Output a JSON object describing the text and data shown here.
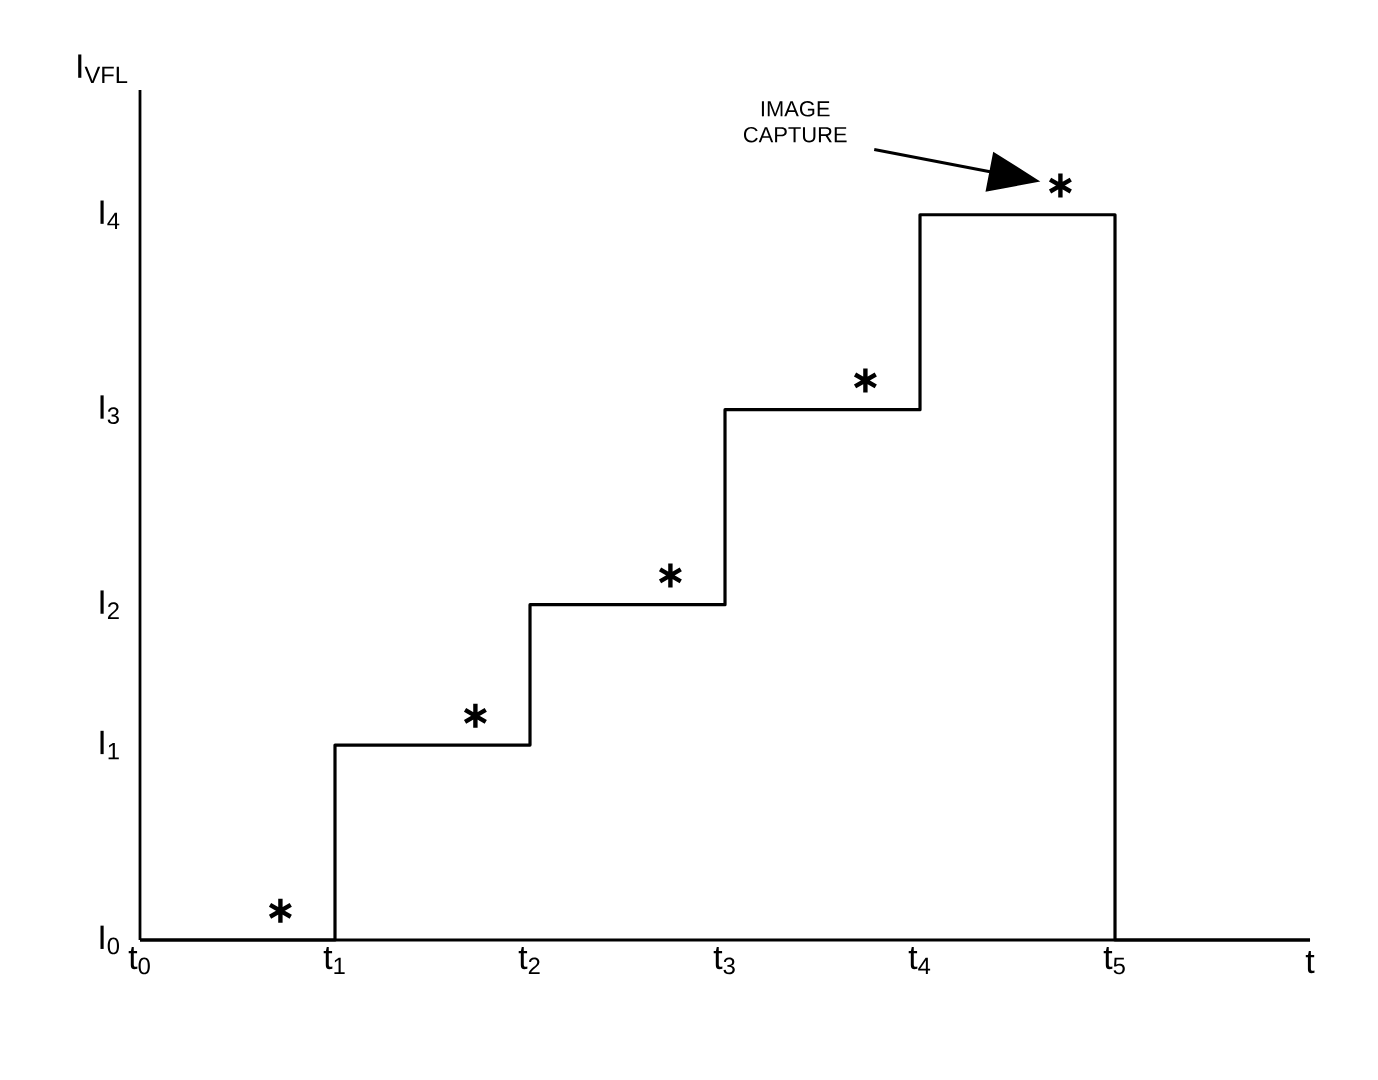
{
  "chart_data": {
    "type": "step",
    "ylabel": "I$_{VFL}$",
    "xlabel": "t",
    "xlim": [
      0,
      6
    ],
    "ylim": [
      0,
      4.36
    ],
    "xticks": [
      {
        "value": 0,
        "label": "t$_{0}$"
      },
      {
        "value": 1,
        "label": "t$_{1}$"
      },
      {
        "value": 2,
        "label": "t$_{2}$"
      },
      {
        "value": 3,
        "label": "t$_{3}$"
      },
      {
        "value": 4,
        "label": "t$_{4}$"
      },
      {
        "value": 5,
        "label": "t$_{5}$"
      }
    ],
    "yticks": [
      {
        "value": 0,
        "label": "I$_{0}$"
      },
      {
        "value": 1,
        "label": "I$_{1}$"
      },
      {
        "value": 1.72,
        "label": "I$_{2}$"
      },
      {
        "value": 2.72,
        "label": "I$_{3}$"
      },
      {
        "value": 3.72,
        "label": "I$_{4}$"
      }
    ],
    "series": [
      {
        "color": "#000000",
        "x": [
          0,
          1,
          2,
          3,
          4,
          5,
          6
        ],
        "values": [
          0,
          1,
          1.72,
          2.72,
          3.72,
          0,
          0
        ]
      },
      {
        "type": "scatter",
        "color": "#000000",
        "marker": "cross",
        "x": [
          0.72,
          1.72,
          2.72,
          3.72,
          4.72
        ],
        "values": [
          0.15,
          1.15,
          1.87,
          2.87,
          3.87
        ]
      }
    ],
    "annotations": [
      "IMAGE CAPTURE"
    ]
  }
}
